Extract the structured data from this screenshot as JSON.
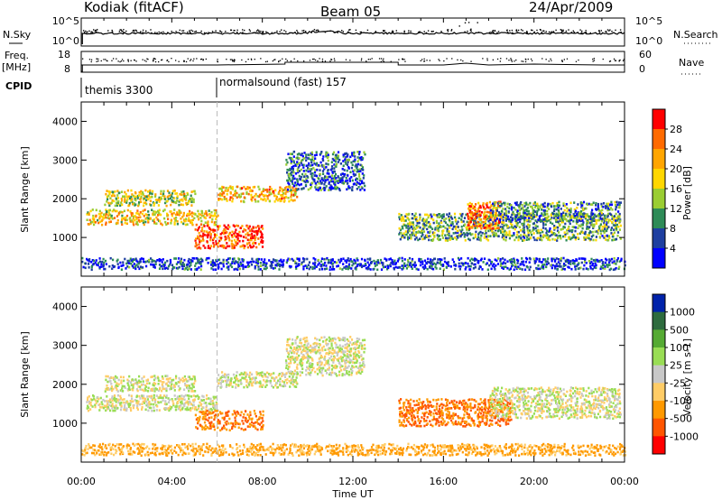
{
  "header": {
    "station": "Kodiak (fitACF)",
    "beam": "Beam 05",
    "date": "24/Apr/2009"
  },
  "strips": {
    "nsky_label": "N.Sky",
    "nsky_ticks": [
      "10^5",
      "10^0"
    ],
    "nsearch_label": "N.Search",
    "nsearch_ticks": [
      "10^5",
      "10^0"
    ],
    "freq_label_1": "Freq.",
    "freq_label_2": "[MHz]",
    "freq_ticks": [
      "18",
      "8"
    ],
    "nave_label": "Nave",
    "nave_ticks": [
      "60",
      "0"
    ],
    "cpid_label": "CPID",
    "cpid_segments": [
      {
        "name": "themis 3300",
        "start_hour": 0
      },
      {
        "name": "normalsound (fast) 157",
        "start_hour": 6
      }
    ]
  },
  "chart_data": [
    {
      "type": "heatmap",
      "title": "",
      "xlabel": "Time UT",
      "ylabel": "Slant Range [km]",
      "xlim": [
        0,
        24
      ],
      "ylim": [
        0,
        4500
      ],
      "xticks": [
        "00:00",
        "04:00",
        "08:00",
        "12:00",
        "16:00",
        "20:00",
        "00:00"
      ],
      "yticks": [
        "1000",
        "2000",
        "3000",
        "4000"
      ],
      "colorbar": {
        "label": "Power [dB]",
        "ticks": [
          "28",
          "24",
          "20",
          "16",
          "12",
          "8",
          "4"
        ],
        "colors": [
          "#ff0000",
          "#ff6a00",
          "#ffa500",
          "#ffd700",
          "#9acd32",
          "#2e8b57",
          "#1e3fa0",
          "#0000ff"
        ]
      },
      "echo_regions": [
        {
          "t": [
            0.2,
            6.0
          ],
          "range": [
            1300,
            1700
          ],
          "power_db": 20
        },
        {
          "t": [
            1.0,
            5.0
          ],
          "range": [
            1800,
            2200
          ],
          "power_db": 18
        },
        {
          "t": [
            5.0,
            8.0
          ],
          "range": [
            700,
            1300
          ],
          "power_db": 28
        },
        {
          "t": [
            6.0,
            9.5
          ],
          "range": [
            1900,
            2300
          ],
          "power_db": 22
        },
        {
          "t": [
            9.0,
            12.5
          ],
          "range": [
            2200,
            3200
          ],
          "power_db": 10
        },
        {
          "t": [
            14.0,
            23.8
          ],
          "range": [
            900,
            1600
          ],
          "power_db": 14
        },
        {
          "t": [
            17.0,
            18.5
          ],
          "range": [
            1200,
            1900
          ],
          "power_db": 26
        },
        {
          "t": [
            18.0,
            23.8
          ],
          "range": [
            1400,
            1900
          ],
          "power_db": 12
        },
        {
          "t": [
            0.0,
            24.0
          ],
          "range": [
            150,
            450
          ],
          "power_db": 8
        }
      ]
    },
    {
      "type": "heatmap",
      "title": "",
      "xlabel": "Time UT",
      "ylabel": "Slant Range [km]",
      "xlim": [
        0,
        24
      ],
      "ylim": [
        0,
        4500
      ],
      "xticks": [
        "00:00",
        "04:00",
        "08:00",
        "12:00",
        "16:00",
        "20:00",
        "00:00"
      ],
      "yticks": [
        "1000",
        "2000",
        "3000",
        "4000"
      ],
      "colorbar": {
        "label": "Velocity [m s-1]",
        "ticks": [
          "1000",
          "500",
          "100",
          "25",
          "-25",
          "-100",
          "-500",
          "-1000"
        ],
        "colors": [
          "#0022aa",
          "#2e6b3e",
          "#55aa33",
          "#99dd55",
          "#c8c8c8",
          "#ffcc66",
          "#ff9900",
          "#ff5500",
          "#ff0000"
        ]
      },
      "echo_regions": [
        {
          "t": [
            0.2,
            6.0
          ],
          "range": [
            1300,
            1700
          ],
          "velocity": 0
        },
        {
          "t": [
            1.0,
            5.0
          ],
          "range": [
            1800,
            2200
          ],
          "velocity": 0
        },
        {
          "t": [
            5.0,
            8.0
          ],
          "range": [
            800,
            1300
          ],
          "velocity": -300
        },
        {
          "t": [
            6.0,
            9.5
          ],
          "range": [
            1900,
            2300
          ],
          "velocity": 0
        },
        {
          "t": [
            9.0,
            12.5
          ],
          "range": [
            2200,
            3200
          ],
          "velocity": 0
        },
        {
          "t": [
            14.0,
            19.0
          ],
          "range": [
            900,
            1600
          ],
          "velocity": -300
        },
        {
          "t": [
            18.0,
            23.8
          ],
          "range": [
            1100,
            1900
          ],
          "velocity": 0
        },
        {
          "t": [
            0.0,
            24.0
          ],
          "range": [
            150,
            450
          ],
          "velocity": -80
        }
      ]
    }
  ]
}
